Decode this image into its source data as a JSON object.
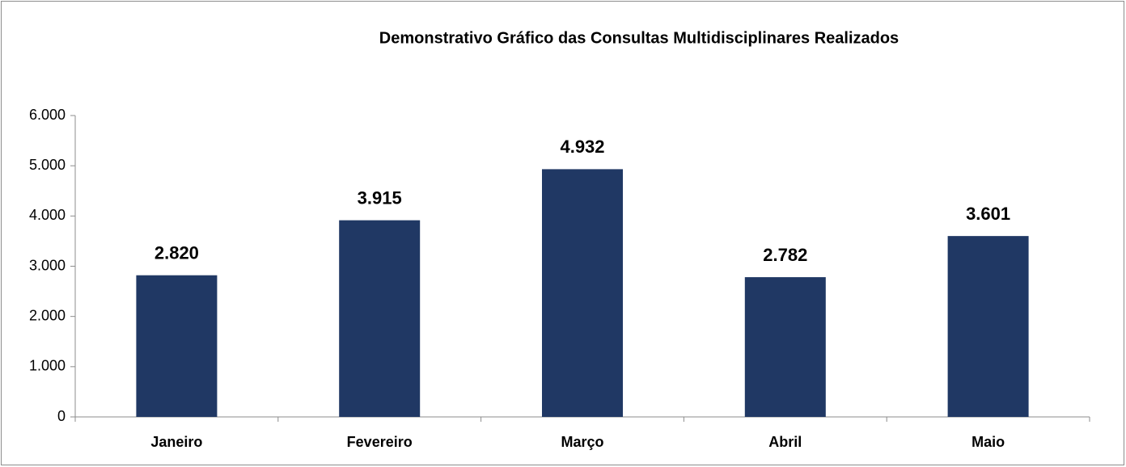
{
  "chart_data": {
    "type": "bar",
    "title": "Demonstrativo Gráfico das Consultas Multidisciplinares Realizados",
    "categories": [
      "Janeiro",
      "Fevereiro",
      "Março",
      "Abril",
      "Maio"
    ],
    "values": [
      2820,
      3915,
      4932,
      2782,
      3601
    ],
    "value_labels": [
      "2.820",
      "3.915",
      "4.932",
      "2.782",
      "3.601"
    ],
    "color": "#203864",
    "ylim": [
      0,
      6000
    ],
    "yticks": [
      0,
      {
        "value": 1000,
        "label": "1.000"
      },
      {
        "value": 2000,
        "label": "2.000"
      },
      {
        "value": 3000,
        "label": "3.000"
      },
      {
        "value": 4000,
        "label": "4.000"
      },
      {
        "value": 5000,
        "label": "5.000"
      },
      {
        "value": 6000,
        "label": "6.000"
      }
    ],
    "grid": false
  }
}
